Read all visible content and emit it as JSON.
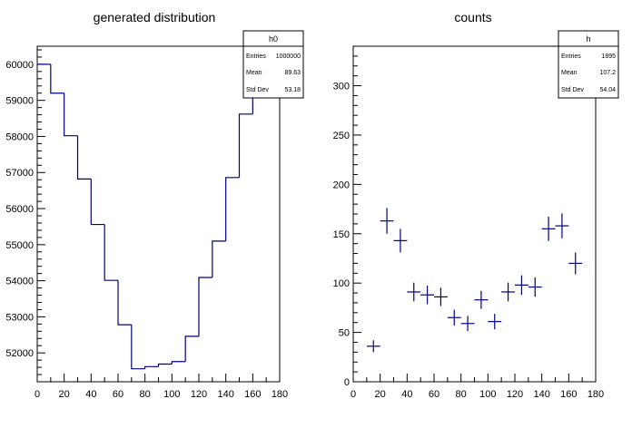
{
  "chart_data": [
    {
      "type": "histogram",
      "title": "generated distribution",
      "xlabel": "",
      "ylabel": "",
      "xlim": [
        0,
        180
      ],
      "ylim": [
        51200,
        60500
      ],
      "x_ticks": [
        0,
        20,
        40,
        60,
        80,
        100,
        120,
        140,
        160,
        180
      ],
      "y_ticks": [
        52000,
        53000,
        54000,
        55000,
        56000,
        57000,
        58000,
        59000,
        60000
      ],
      "bin_edges": [
        0,
        10,
        20,
        30,
        40,
        50,
        60,
        70,
        80,
        90,
        100,
        110,
        120,
        130,
        140,
        150,
        160,
        170,
        180
      ],
      "values": [
        60000,
        59200,
        58020,
        56820,
        55560,
        54010,
        52780,
        51560,
        51620,
        51690,
        51760,
        52460,
        54090,
        55100,
        56860,
        58620,
        59800,
        60000
      ],
      "stats_box": {
        "name": "h0",
        "rows": [
          {
            "label": "Entries",
            "value": "1000000"
          },
          {
            "label": "Mean",
            "value": "89.63"
          },
          {
            "label": "Std Dev",
            "value": "53.18"
          }
        ]
      }
    },
    {
      "type": "scatter",
      "title": "counts",
      "xlabel": "",
      "ylabel": "",
      "xlim": [
        0,
        180
      ],
      "ylim": [
        0,
        340
      ],
      "x_ticks": [
        0,
        20,
        40,
        60,
        80,
        100,
        120,
        140,
        160,
        180
      ],
      "y_ticks": [
        0,
        50,
        100,
        150,
        200,
        250,
        300
      ],
      "x": [
        15,
        25,
        35,
        45,
        55,
        65,
        75,
        85,
        95,
        105,
        115,
        125,
        135,
        145,
        155,
        165
      ],
      "y": [
        36,
        163,
        143,
        91,
        88,
        86,
        65,
        59,
        83,
        61,
        91,
        98,
        96,
        155,
        158,
        120
      ],
      "x_err": 5,
      "y_err": [
        6,
        13,
        12,
        9.5,
        9.4,
        9.3,
        8,
        7.7,
        9.1,
        7.8,
        9.5,
        9.9,
        9.8,
        12.4,
        12.6,
        11
      ],
      "marker_color": "#000080",
      "stats_box": {
        "name": "h",
        "rows": [
          {
            "label": "Entries",
            "value": "1895"
          },
          {
            "label": "Mean",
            "value": "107.2"
          },
          {
            "label": "Std Dev",
            "value": "54.04"
          }
        ]
      }
    }
  ]
}
